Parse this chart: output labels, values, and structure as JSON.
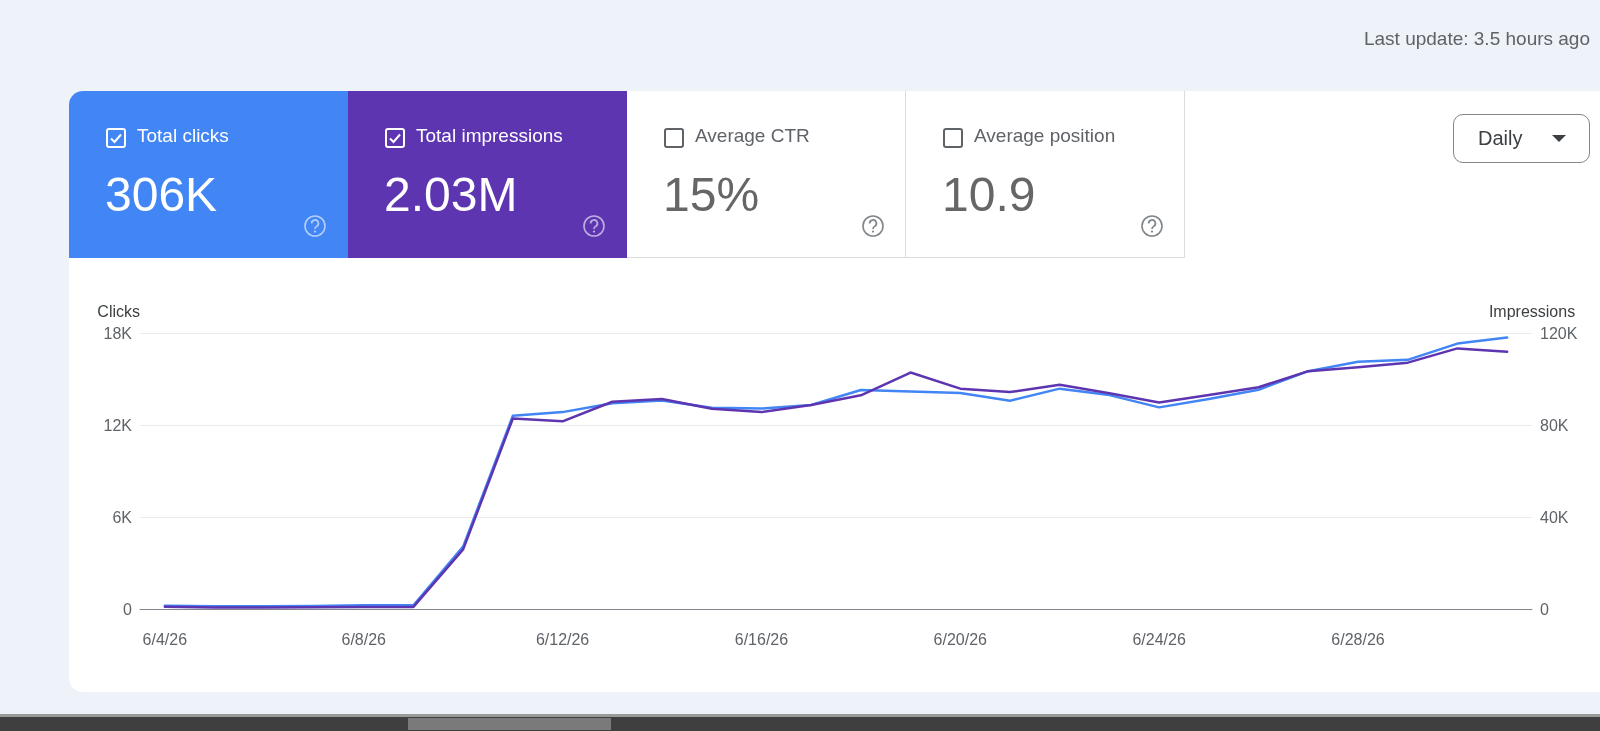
{
  "chart_data": [
    {
      "type": "other",
      "annotations": [
        "Last update: 3.5 hours ago",
        "Total clicks",
        "306K",
        "Total impressions",
        "2.03M",
        "Average CTR",
        "15%",
        "Average position",
        "10.9",
        "Daily"
      ],
      "colors": [
        "#4285f4",
        "#5e35b1",
        "#ffffff",
        "#ffffff"
      ]
    },
    {
      "type": "line",
      "categories": [
        "6/4/26",
        null,
        null,
        null,
        "6/8/26",
        null,
        null,
        null,
        "6/12/26",
        null,
        null,
        null,
        "6/16/26",
        null,
        null,
        null,
        "6/20/26",
        null,
        null,
        null,
        "6/24/26",
        null,
        null,
        null,
        "6/28/26",
        null,
        null,
        null
      ],
      "ylabel": "Clicks",
      "y2label": "Impressions",
      "ylim": [
        0,
        18000
      ],
      "yticks": [
        0,
        {
          "value": 6000,
          "label": "6K"
        },
        {
          "value": 12000,
          "label": "12K"
        },
        {
          "value": 18000,
          "label": "18K"
        }
      ],
      "y2lim": [
        0,
        120000
      ],
      "y2ticks": [
        0,
        {
          "value": 40000,
          "label": "40K"
        },
        {
          "value": 80000,
          "label": "80K"
        },
        {
          "value": 120000,
          "label": "120K"
        }
      ],
      "grid": "y",
      "series": [
        {
          "color": "#4285f4",
          "values": [
            220,
            180,
            180,
            200,
            240,
            240,
            4070,
            12600,
            12840,
            13420,
            13600,
            13120,
            13070,
            13300,
            14280,
            14190,
            14090,
            13580,
            14370,
            13950,
            13150,
            13690,
            14300,
            15510,
            16120,
            16250,
            17310,
            17700
          ]
        },
        {
          "color": "#5e35b1",
          "axis": "y2",
          "values": [
            1000,
            700,
            700,
            800,
            900,
            900,
            25900,
            82800,
            81600,
            90100,
            91300,
            87100,
            85600,
            88700,
            92900,
            102800,
            95800,
            94300,
            97500,
            93800,
            89800,
            93000,
            96400,
            103400,
            105100,
            107100,
            113300,
            111800
          ]
        }
      ]
    }
  ]
}
